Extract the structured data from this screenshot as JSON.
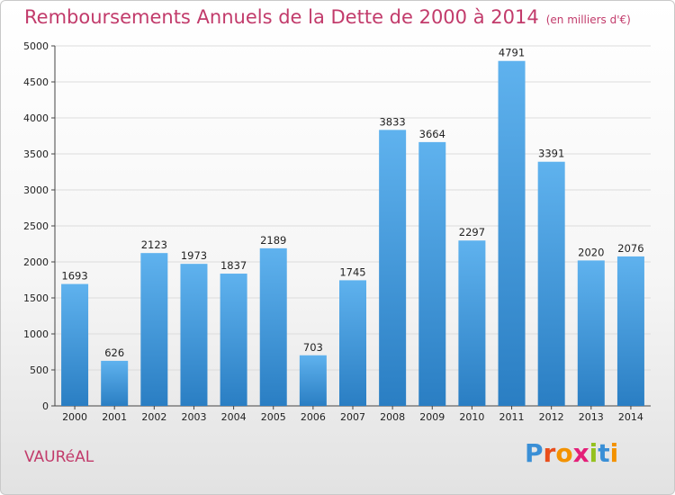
{
  "title": "Remboursements Annuels de la Dette de 2000 à 2014",
  "unit": "(en milliers d'€)",
  "town": "VAURéAL",
  "logo": {
    "text": "Proxiti",
    "colors": [
      "#3a8fd6",
      "#e94e1b",
      "#f39200",
      "#e41f78",
      "#95c11f",
      "#3a8fd6",
      "#f39200"
    ]
  },
  "colors": {
    "title": "#c23b6b",
    "bar_top": "#5fb2ee",
    "bar_bottom": "#2a7ec3",
    "grid": "#dcdcdc"
  },
  "chart_data": {
    "type": "bar",
    "title": "Remboursements Annuels de la Dette de 2000 à 2014",
    "xlabel": "",
    "ylabel": "(en milliers d'€)",
    "categories": [
      "2000",
      "2001",
      "2002",
      "2003",
      "2004",
      "2005",
      "2006",
      "2007",
      "2008",
      "2009",
      "2010",
      "2011",
      "2012",
      "2013",
      "2014"
    ],
    "values": [
      1693,
      626,
      2123,
      1973,
      1837,
      2189,
      703,
      1745,
      3833,
      3664,
      2297,
      4791,
      3391,
      2020,
      2076
    ],
    "ylim": [
      0,
      5000
    ],
    "yticks": [
      0,
      500,
      1000,
      1500,
      2000,
      2500,
      3000,
      3500,
      4000,
      4500,
      5000
    ],
    "grid": true
  }
}
